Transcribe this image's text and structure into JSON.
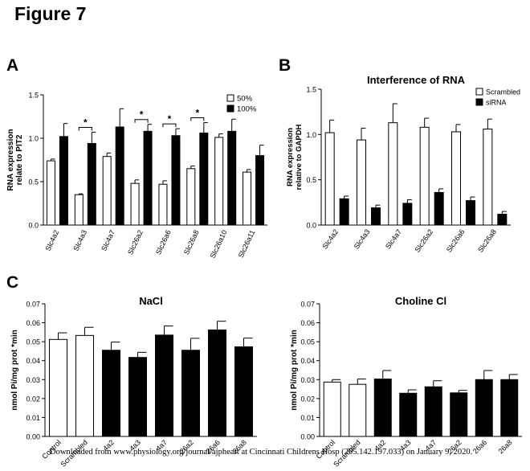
{
  "figure_title": "Figure 7",
  "footer_note": "Downloaded from www.physiology.org/journal/ajpheart at Cincinnati Childrens Hosp (205.142.197.033) on January 9, 2020.",
  "panels": {
    "A": "A",
    "B": "B",
    "C": "C"
  },
  "chart_data": [
    {
      "id": "A",
      "type": "bar",
      "title": "",
      "ylabel": [
        "RNA expression",
        "relate to PIT2"
      ],
      "ylim": [
        0,
        1.5
      ],
      "yticks": [
        "0.0",
        "0.5",
        "1.0",
        "1.5"
      ],
      "categories": [
        "Slc4a2",
        "Slc4a3",
        "Slc4a7",
        "Slc26a2",
        "Slc26a6",
        "Slc26a8",
        "Slc26a10",
        "Slc26a11"
      ],
      "series": [
        {
          "name": "50%",
          "color": "#ffffff",
          "values": [
            0.74,
            0.35,
            0.79,
            0.48,
            0.47,
            0.65,
            1.01,
            0.61
          ],
          "errors": [
            0.02,
            0.01,
            0.04,
            0.04,
            0.04,
            0.03,
            0.04,
            0.03
          ]
        },
        {
          "name": "100%",
          "color": "#000000",
          "values": [
            1.02,
            0.94,
            1.13,
            1.08,
            1.03,
            1.06,
            1.08,
            0.8
          ],
          "errors": [
            0.15,
            0.13,
            0.21,
            0.08,
            0.08,
            0.12,
            0.14,
            0.12
          ]
        }
      ],
      "significance": [
        "",
        "*",
        "",
        "*",
        "*",
        "*",
        "",
        ""
      ],
      "legend": "top-right"
    },
    {
      "id": "B",
      "type": "bar",
      "title": "Interference of RNA",
      "ylabel": [
        "RNA expression",
        "relative to GAPDH"
      ],
      "ylim": [
        0,
        1.5
      ],
      "yticks": [
        "0.0",
        "0.5",
        "1.0",
        "1.5"
      ],
      "categories": [
        "Slc4a2",
        "Slc4a3",
        "Slc4a7",
        "Slc26a2",
        "Slc26a6",
        "Slc26a8"
      ],
      "series": [
        {
          "name": "Scrambled",
          "color": "#ffffff",
          "values": [
            1.02,
            0.94,
            1.13,
            1.08,
            1.03,
            1.06
          ],
          "errors": [
            0.14,
            0.13,
            0.21,
            0.1,
            0.08,
            0.11
          ]
        },
        {
          "name": "siRNA",
          "color": "#000000",
          "values": [
            0.29,
            0.19,
            0.24,
            0.36,
            0.27,
            0.12
          ],
          "errors": [
            0.03,
            0.03,
            0.04,
            0.04,
            0.04,
            0.03
          ]
        }
      ],
      "legend": "top-right"
    },
    {
      "id": "C1",
      "type": "bar",
      "title": "NaCl",
      "ylabel": [
        "nmol Pi/mg prot *min"
      ],
      "ylim": [
        0,
        0.07
      ],
      "yticks": [
        "0.00",
        "0.01",
        "0.02",
        "0.03",
        "0.04",
        "0.05",
        "0.06",
        "0.07"
      ],
      "categories": [
        "Control",
        "Scrambled",
        "4a2",
        "4a3",
        "4a7",
        "26a2",
        "26a6",
        "26a8"
      ],
      "values": [
        0.0512,
        0.0533,
        0.0455,
        0.0417,
        0.0535,
        0.0455,
        0.0562,
        0.0473
      ],
      "errors": [
        0.0035,
        0.0043,
        0.0043,
        0.0027,
        0.0048,
        0.0063,
        0.0046,
        0.0046
      ],
      "colors": [
        "#ffffff",
        "#ffffff",
        "#000000",
        "#000000",
        "#000000",
        "#000000",
        "#000000",
        "#000000"
      ]
    },
    {
      "id": "C2",
      "type": "bar",
      "title": "Choline Cl",
      "ylabel": [
        "nmol Pi/mg prot *min"
      ],
      "ylim": [
        0,
        0.07
      ],
      "yticks": [
        "0.00",
        "0.01",
        "0.02",
        "0.03",
        "0.04",
        "0.05",
        "0.06",
        "0.07"
      ],
      "categories": [
        "Control",
        "Scrambled",
        "4a2",
        "4a3",
        "4a7",
        "26a2",
        "26a6",
        "26a8"
      ],
      "values": [
        0.0287,
        0.0275,
        0.0303,
        0.0228,
        0.0262,
        0.023,
        0.03,
        0.03
      ],
      "errors": [
        0.0013,
        0.0028,
        0.0045,
        0.0018,
        0.0032,
        0.0013,
        0.0048,
        0.0027
      ],
      "colors": [
        "#ffffff",
        "#ffffff",
        "#000000",
        "#000000",
        "#000000",
        "#000000",
        "#000000",
        "#000000"
      ]
    }
  ]
}
